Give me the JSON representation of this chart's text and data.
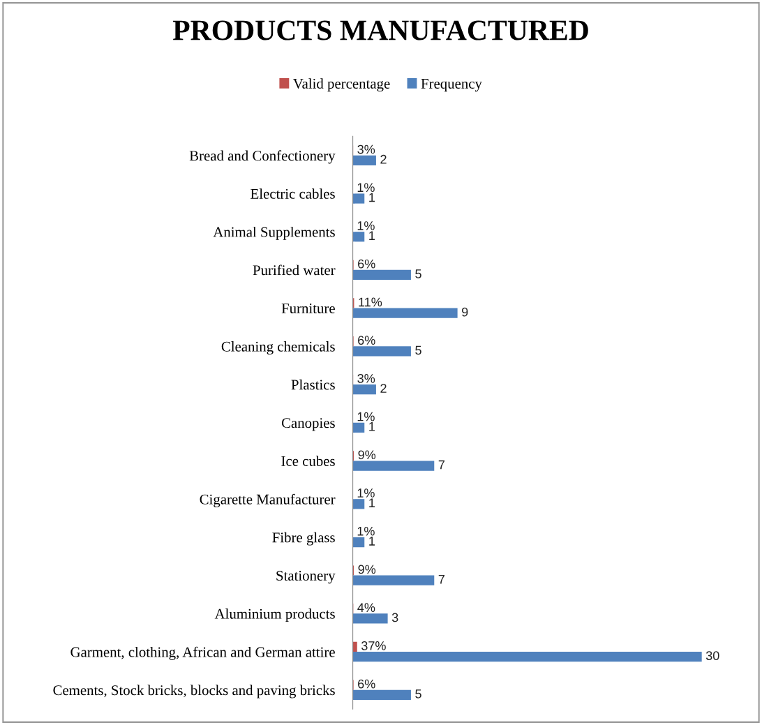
{
  "chart_data": {
    "type": "bar",
    "orientation": "horizontal",
    "title": "PRODUCTS MANUFACTURED",
    "categories": [
      "Bread and Confectionery",
      "Electric cables",
      "Animal Supplements",
      "Purified water",
      "Furniture",
      "Cleaning chemicals",
      "Plastics",
      "Canopies",
      "Ice cubes",
      "Cigarette Manufacturer",
      "Fibre glass",
      "Stationery",
      "Aluminium products",
      "Garment, clothing, African and German attire",
      "Cements, Stock bricks, blocks and paving bricks"
    ],
    "series": [
      {
        "name": "Valid percentage",
        "color": "#c0504d",
        "values": [
          0.03,
          0.01,
          0.01,
          0.06,
          0.11,
          0.06,
          0.03,
          0.01,
          0.09,
          0.01,
          0.01,
          0.09,
          0.04,
          0.37,
          0.06
        ],
        "value_labels": [
          "3%",
          "1%",
          "1%",
          "6%",
          "11%",
          "6%",
          "3%",
          "1%",
          "9%",
          "1%",
          "1%",
          "9%",
          "4%",
          "37%",
          "6%"
        ]
      },
      {
        "name": "Frequency",
        "color": "#4f81bd",
        "values": [
          2,
          1,
          1,
          5,
          9,
          5,
          2,
          1,
          7,
          1,
          1,
          7,
          3,
          30,
          5
        ],
        "value_labels": [
          "2",
          "1",
          "1",
          "5",
          "9",
          "5",
          "2",
          "1",
          "7",
          "1",
          "1",
          "7",
          "3",
          "30",
          "5"
        ]
      }
    ],
    "legend": "top",
    "grid": false
  }
}
